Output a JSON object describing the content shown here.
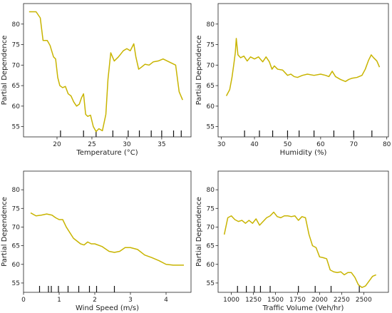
{
  "chart_data": [
    {
      "type": "line",
      "xlabel": "Temperature (°C)",
      "ylabel": "Partial Dependence",
      "xlim": [
        15.2,
        39.2
      ],
      "ylim": [
        52.5,
        85.0
      ],
      "xticks": [
        20,
        25,
        30,
        35
      ],
      "yticks": [
        55,
        60,
        65,
        70,
        75,
        80
      ],
      "line_color": "#c8b400",
      "x": [
        16.0,
        17.0,
        17.6,
        18.0,
        18.6,
        19.0,
        19.5,
        19.8,
        20.1,
        20.4,
        20.8,
        21.2,
        21.6,
        22.0,
        22.4,
        22.8,
        23.2,
        23.5,
        23.8,
        24.1,
        24.4,
        24.8,
        25.2,
        25.6,
        26.0,
        26.5,
        27.0,
        27.3,
        27.7,
        28.2,
        28.8,
        29.5,
        30.0,
        30.5,
        31.0,
        31.3,
        31.7,
        32.1,
        32.6,
        33.2,
        33.8,
        34.5,
        35.2,
        35.8,
        36.4,
        37.0,
        37.5,
        38.0
      ],
      "y": [
        83.0,
        83.0,
        81.5,
        76.0,
        76.0,
        74.8,
        72.0,
        71.5,
        67.0,
        65.0,
        64.5,
        64.8,
        63.0,
        62.5,
        61.0,
        60.0,
        60.5,
        62.0,
        63.0,
        58.0,
        57.5,
        57.8,
        55.0,
        53.8,
        54.5,
        54.0,
        58.0,
        66.5,
        73.0,
        71.0,
        72.0,
        73.5,
        74.0,
        73.5,
        75.2,
        72.0,
        69.0,
        69.5,
        70.2,
        70.0,
        70.8,
        71.0,
        71.5,
        71.0,
        70.5,
        70.0,
        63.5,
        61.5
      ],
      "rug": [
        20.5,
        23.8,
        25.6,
        28.0,
        30.2,
        31.8,
        33.5,
        35.0,
        36.7,
        37.8
      ]
    },
    {
      "type": "line",
      "xlabel": "Humidity (%)",
      "ylabel": "Partial Dependence",
      "xlim": [
        29.0,
        80.5
      ],
      "ylim": [
        52.5,
        85.0
      ],
      "xticks": [
        30,
        40,
        50,
        60,
        70,
        80
      ],
      "yticks": [
        55,
        60,
        65,
        70,
        75,
        80
      ],
      "line_color": "#c8b400",
      "x": [
        31.5,
        32.5,
        33.2,
        33.8,
        34.2,
        34.5,
        35.0,
        35.8,
        36.8,
        37.8,
        38.8,
        40.0,
        41.2,
        42.5,
        43.5,
        44.5,
        45.3,
        46.0,
        47.0,
        48.5,
        50.0,
        51.0,
        52.0,
        53.0,
        54.5,
        56.0,
        58.0,
        60.0,
        61.5,
        62.5,
        63.5,
        64.5,
        66.0,
        67.5,
        68.5,
        69.5,
        71.0,
        72.5,
        73.5,
        74.5,
        75.3,
        76.0,
        77.0,
        77.8
      ],
      "y": [
        62.5,
        64.0,
        67.0,
        70.5,
        73.0,
        76.5,
        72.5,
        71.8,
        72.2,
        71.0,
        72.0,
        71.5,
        72.0,
        70.8,
        72.0,
        70.8,
        69.0,
        69.8,
        69.0,
        68.8,
        67.5,
        67.8,
        67.2,
        67.0,
        67.5,
        67.8,
        67.5,
        67.8,
        67.5,
        67.2,
        68.5,
        67.2,
        66.5,
        66.0,
        66.5,
        66.8,
        67.0,
        67.5,
        69.0,
        71.2,
        72.5,
        71.8,
        71.0,
        69.5
      ],
      "rug": [
        37.0,
        41.5,
        45.5,
        50.0,
        53.5,
        58.0,
        64.0,
        70.0,
        75.5
      ]
    },
    {
      "type": "line",
      "xlabel": "Wind Speed (m/s)",
      "ylabel": "Partial Dependence",
      "xlim": [
        0.0,
        4.7
      ],
      "ylim": [
        52.5,
        85.0
      ],
      "xticks": [
        0,
        1,
        2,
        3,
        4
      ],
      "yticks": [
        55,
        60,
        65,
        70,
        75,
        80
      ],
      "line_color": "#c8b400",
      "x": [
        0.2,
        0.35,
        0.5,
        0.65,
        0.8,
        0.9,
        1.0,
        1.1,
        1.2,
        1.4,
        1.6,
        1.7,
        1.8,
        1.9,
        2.0,
        2.2,
        2.4,
        2.55,
        2.7,
        2.85,
        3.0,
        3.2,
        3.4,
        3.6,
        3.8,
        4.0,
        4.2,
        4.5
      ],
      "y": [
        73.8,
        73.0,
        73.2,
        73.5,
        73.2,
        72.5,
        72.0,
        72.0,
        70.0,
        67.0,
        65.5,
        65.2,
        66.0,
        65.5,
        65.5,
        64.8,
        63.5,
        63.2,
        63.5,
        64.5,
        64.5,
        64.0,
        62.5,
        61.8,
        61.0,
        60.0,
        59.8,
        59.8
      ],
      "rug": [
        0.45,
        0.7,
        0.78,
        0.98,
        1.25,
        1.55,
        1.85,
        2.05,
        2.55
      ]
    },
    {
      "type": "line",
      "xlabel": "Traffic Volume (Veh/hr)",
      "ylabel": "Partial Dependence",
      "xlim": [
        850,
        2780
      ],
      "ylim": [
        52.5,
        85.0
      ],
      "xticks": [
        1000,
        1250,
        1500,
        1750,
        2000,
        2250,
        2500
      ],
      "yticks": [
        55,
        60,
        65,
        70,
        75,
        80
      ],
      "line_color": "#c8b400",
      "x": [
        920,
        960,
        1000,
        1040,
        1080,
        1120,
        1160,
        1200,
        1240,
        1280,
        1320,
        1360,
        1400,
        1440,
        1480,
        1520,
        1560,
        1600,
        1640,
        1680,
        1720,
        1760,
        1800,
        1840,
        1880,
        1920,
        1960,
        2000,
        2040,
        2080,
        2120,
        2160,
        2200,
        2240,
        2280,
        2320,
        2360,
        2400,
        2440,
        2480,
        2520,
        2560,
        2600,
        2640
      ],
      "y": [
        68.0,
        72.5,
        73.0,
        72.0,
        71.5,
        71.8,
        71.0,
        71.8,
        71.0,
        72.2,
        70.5,
        71.5,
        72.5,
        73.0,
        74.0,
        72.8,
        72.5,
        73.0,
        73.0,
        72.8,
        73.0,
        71.8,
        72.8,
        72.5,
        68.0,
        65.0,
        64.5,
        62.0,
        61.8,
        61.5,
        58.5,
        58.0,
        57.8,
        58.0,
        57.2,
        57.8,
        57.8,
        56.5,
        54.5,
        53.8,
        54.2,
        55.5,
        56.8,
        57.2
      ],
      "rug": [
        1070,
        1170,
        1260,
        1330,
        1440,
        1760,
        1950,
        2130,
        2450
      ]
    }
  ]
}
